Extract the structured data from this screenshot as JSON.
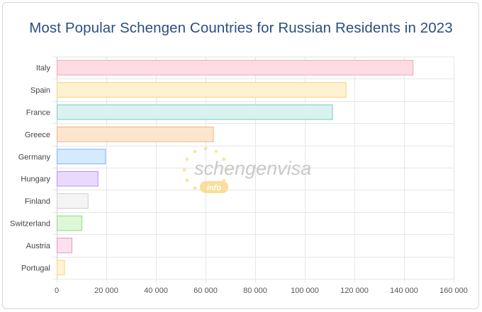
{
  "chart_data": {
    "type": "bar",
    "orientation": "horizontal",
    "title": "Most Popular Schengen Countries for Russian Residents in 2023",
    "categories": [
      "Italy",
      "Spain",
      "France",
      "Greece",
      "Germany",
      "Hungary",
      "Finland",
      "Switzerland",
      "Austria",
      "Portugal"
    ],
    "values": [
      143500,
      116500,
      111000,
      63000,
      19500,
      16500,
      12500,
      10000,
      6000,
      3000
    ],
    "xlim": [
      0,
      160000
    ],
    "x_ticks": [
      0,
      20000,
      40000,
      60000,
      80000,
      100000,
      120000,
      140000,
      160000
    ],
    "x_tick_labels": [
      "0",
      "20 000",
      "40 000",
      "60 000",
      "80 000",
      "100 000",
      "120 000",
      "140 000",
      "160 000"
    ],
    "grid": true,
    "legend": "none",
    "colors": [
      {
        "fill": "#ffdce4",
        "stroke": "#f5a0b4"
      },
      {
        "fill": "#fff2d0",
        "stroke": "#f7d27e"
      },
      {
        "fill": "#d9f2f0",
        "stroke": "#72cdc6"
      },
      {
        "fill": "#fde6d0",
        "stroke": "#f5b27a"
      },
      {
        "fill": "#d6eaff",
        "stroke": "#7ab8ec"
      },
      {
        "fill": "#ead9ff",
        "stroke": "#b591ef"
      },
      {
        "fill": "#f4f4f4",
        "stroke": "#cfcfcf"
      },
      {
        "fill": "#dff7d8",
        "stroke": "#8edc7c"
      },
      {
        "fill": "#fde0ef",
        "stroke": "#ef8fc3"
      },
      {
        "fill": "#fff4d4",
        "stroke": "#f5d57c"
      }
    ]
  },
  "watermark": {
    "brand": "schengenvisa",
    "sub": "info",
    "star_color": "#f4dc7c",
    "badge_color": "#f7d98a"
  }
}
